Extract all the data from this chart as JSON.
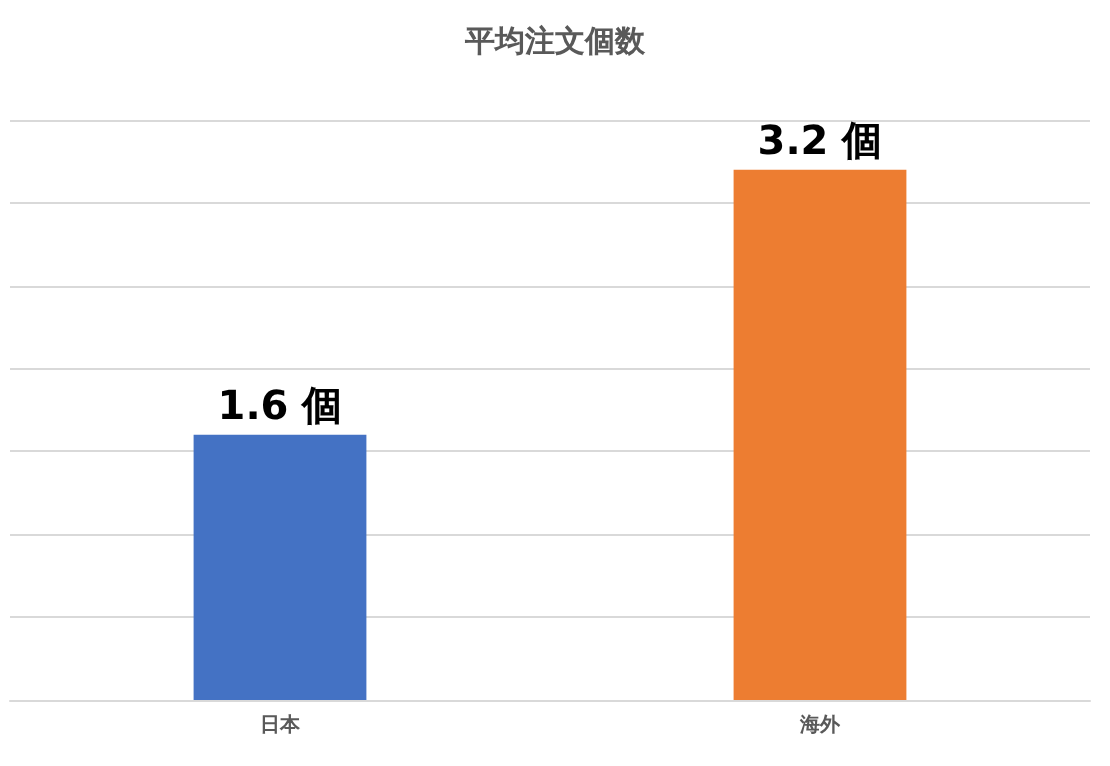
{
  "chart_data": {
    "type": "bar",
    "title": "平均注文個数",
    "categories": [
      "日本",
      "海外"
    ],
    "values": [
      1.6,
      3.2
    ],
    "colors": [
      "#4472c4",
      "#ed7d31"
    ],
    "value_labels": [
      "1.6 個",
      "3.2 個"
    ],
    "ylim": [
      0,
      3.5
    ],
    "yticks": [
      {
        "value": 0,
        "label": null
      },
      {
        "value": 0.5,
        "label": null
      },
      {
        "value": 1,
        "label": null
      },
      {
        "value": 1.5,
        "label": null
      },
      {
        "value": 2,
        "label": null
      },
      {
        "value": 2.5,
        "label": null
      },
      {
        "value": 3,
        "label": null
      },
      {
        "value": 3.5,
        "label": null
      }
    ],
    "grid": "y",
    "tick_labels": "x"
  }
}
